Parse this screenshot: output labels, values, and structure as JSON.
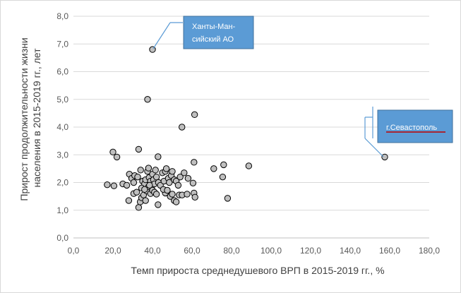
{
  "chart_data": {
    "type": "scatter",
    "xlabel": "Темп прироста среднедушевого ВРП в 2015-2019 гг., %",
    "ylabel": "Прирост продолжительности жизни населения  в 2015-2019 гг., лет",
    "xlim": [
      0,
      180
    ],
    "ylim": [
      0,
      8
    ],
    "xticks": [
      "0,0",
      "20,0",
      "40,0",
      "60,0",
      "80,0",
      "100,0",
      "120,0",
      "140,0",
      "160,0",
      "180,0"
    ],
    "yticks": [
      "0,0",
      "1,0",
      "2,0",
      "3,0",
      "4,0",
      "5,0",
      "6,0",
      "7,0",
      "8,0"
    ],
    "grid": "horizontal",
    "marker_color": "#bfbfbf",
    "marker_edge": "#000000",
    "points": [
      [
        40.0,
        6.8
      ],
      [
        37.5,
        5.0
      ],
      [
        61.3,
        4.45
      ],
      [
        54.9,
        4.0
      ],
      [
        157.5,
        2.92
      ],
      [
        20.0,
        3.1
      ],
      [
        22.0,
        2.92
      ],
      [
        33.0,
        3.2
      ],
      [
        42.8,
        2.93
      ],
      [
        61.0,
        2.73
      ],
      [
        76.0,
        2.64
      ],
      [
        71.0,
        2.5
      ],
      [
        88.7,
        2.6
      ],
      [
        75.5,
        2.2
      ],
      [
        78.0,
        1.43
      ],
      [
        17.1,
        1.92
      ],
      [
        20.5,
        1.88
      ],
      [
        25.0,
        1.95
      ],
      [
        27.0,
        1.9
      ],
      [
        28.3,
        2.3
      ],
      [
        29.5,
        2.15
      ],
      [
        30.5,
        2.0
      ],
      [
        31.0,
        2.25
      ],
      [
        32.5,
        2.2
      ],
      [
        34.0,
        2.45
      ],
      [
        35.0,
        2.05
      ],
      [
        36.0,
        1.95
      ],
      [
        36.5,
        2.1
      ],
      [
        37.5,
        2.4
      ],
      [
        38.0,
        2.52
      ],
      [
        38.3,
        2.18
      ],
      [
        39.0,
        2.05
      ],
      [
        39.5,
        1.85
      ],
      [
        40.0,
        2.3
      ],
      [
        40.5,
        2.1
      ],
      [
        41.0,
        1.95
      ],
      [
        41.5,
        2.45
      ],
      [
        42.0,
        2.2
      ],
      [
        43.0,
        2.0
      ],
      [
        44.0,
        1.9
      ],
      [
        45.0,
        2.35
      ],
      [
        45.8,
        2.05
      ],
      [
        46.5,
        2.4
      ],
      [
        47.0,
        2.5
      ],
      [
        48.0,
        2.15
      ],
      [
        48.5,
        2.0
      ],
      [
        49.5,
        2.25
      ],
      [
        50.0,
        2.4
      ],
      [
        51.0,
        2.1
      ],
      [
        52.0,
        2.05
      ],
      [
        53.0,
        1.9
      ],
      [
        54.0,
        2.2
      ],
      [
        56.0,
        2.35
      ],
      [
        58.0,
        2.15
      ],
      [
        60.5,
        1.98
      ],
      [
        28.0,
        1.35
      ],
      [
        30.5,
        1.6
      ],
      [
        32.0,
        1.65
      ],
      [
        33.0,
        1.1
      ],
      [
        33.8,
        1.3
      ],
      [
        34.5,
        1.45
      ],
      [
        35.5,
        1.55
      ],
      [
        36.5,
        1.35
      ],
      [
        37.0,
        1.7
      ],
      [
        38.0,
        1.85
      ],
      [
        39.0,
        1.6
      ],
      [
        40.0,
        1.72
      ],
      [
        41.0,
        1.65
      ],
      [
        42.0,
        1.58
      ],
      [
        42.8,
        1.2
      ],
      [
        46.5,
        1.62
      ],
      [
        49.0,
        1.5
      ],
      [
        50.0,
        1.58
      ],
      [
        51.0,
        1.35
      ],
      [
        52.0,
        1.3
      ],
      [
        53.5,
        1.55
      ],
      [
        55.0,
        1.55
      ],
      [
        57.5,
        1.58
      ],
      [
        61.0,
        1.62
      ],
      [
        61.5,
        1.47
      ],
      [
        34.5,
        1.8
      ],
      [
        36.0,
        1.75
      ],
      [
        38.5,
        1.9
      ],
      [
        45.5,
        1.75
      ],
      [
        47.5,
        1.72
      ]
    ]
  },
  "callouts": [
    {
      "text_line1": "Ханты-Ман-",
      "text_line2": "сийский АО",
      "fill": "#5b9bd5"
    },
    {
      "text": "г.Севастополь",
      "fill": "#5b9bd5",
      "underline": "#c00000"
    }
  ]
}
